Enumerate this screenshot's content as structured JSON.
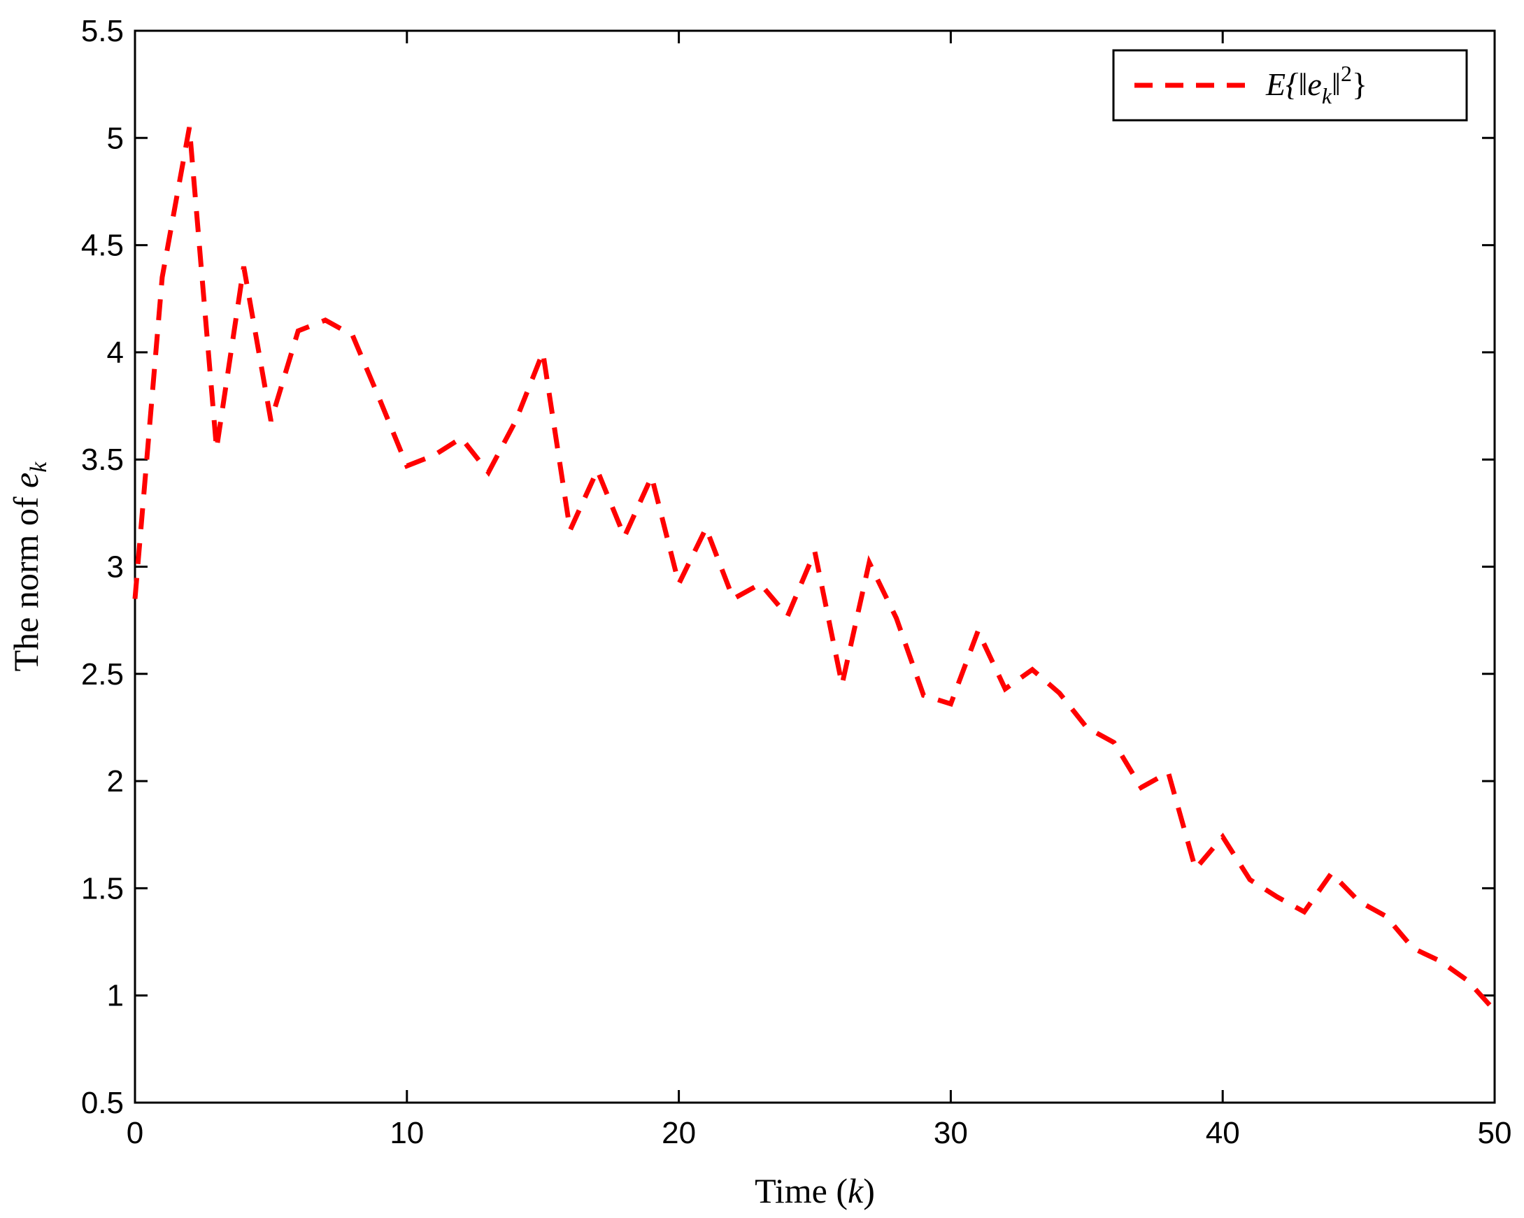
{
  "chart_data": {
    "type": "line",
    "title": "",
    "xlabel_main": "Time",
    "xlabel_var": "k",
    "ylabel_main": "The norm of",
    "ylabel_var": "e",
    "ylabel_sub": "k",
    "xlim": [
      0,
      50
    ],
    "ylim": [
      0.5,
      5.5
    ],
    "xticks": [
      0,
      10,
      20,
      30,
      40,
      50
    ],
    "yticks": [
      0.5,
      1,
      1.5,
      2,
      2.5,
      3,
      3.5,
      4,
      4.5,
      5,
      5.5
    ],
    "grid": false,
    "legend_position": "top-right",
    "series": [
      {
        "name": "E{‖e_k‖²}",
        "color": "#ff0000",
        "line_style": "dashed",
        "x": [
          0,
          1,
          2,
          3,
          4,
          5,
          6,
          7,
          8,
          9,
          10,
          11,
          12,
          13,
          14,
          15,
          16,
          17,
          18,
          19,
          20,
          21,
          22,
          23,
          24,
          25,
          26,
          27,
          28,
          29,
          30,
          31,
          32,
          33,
          34,
          35,
          36,
          37,
          38,
          39,
          40,
          41,
          42,
          43,
          44,
          45,
          46,
          47,
          48,
          49,
          50
        ],
        "y": [
          2.85,
          4.35,
          5.05,
          3.55,
          4.4,
          3.68,
          4.1,
          4.15,
          4.08,
          3.78,
          3.47,
          3.52,
          3.6,
          3.44,
          3.68,
          4.0,
          3.17,
          3.45,
          3.14,
          3.42,
          2.92,
          3.18,
          2.85,
          2.92,
          2.77,
          3.07,
          2.45,
          3.02,
          2.76,
          2.4,
          2.36,
          2.7,
          2.43,
          2.52,
          2.41,
          2.25,
          2.18,
          1.97,
          2.04,
          1.59,
          1.74,
          1.54,
          1.46,
          1.39,
          1.57,
          1.44,
          1.37,
          1.22,
          1.16,
          1.07,
          0.93
        ]
      }
    ],
    "legend": {
      "main": "E{‖e",
      "sub": "k",
      "tail": "‖",
      "sup": "2",
      "close": "}"
    }
  }
}
